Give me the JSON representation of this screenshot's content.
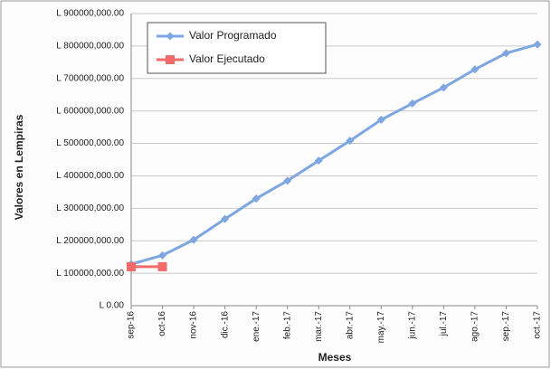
{
  "chart_data": {
    "type": "line",
    "x_label": "Meses",
    "y_label": "Valores en Lempiras",
    "categories": [
      "sep-16",
      "oct-16",
      "nov-16",
      "dic.-16",
      "ene.-17",
      "feb.-17",
      "mar.-17",
      "abr.-17",
      "may.-17",
      "jun.-17",
      "jul.-17",
      "ago.-17",
      "sep.-17",
      "oct.-17"
    ],
    "series": [
      {
        "name": "Valor Programado",
        "color": "#7ea6e0",
        "marker": "diamond",
        "values": [
          128000000,
          155000000,
          203000000,
          267000000,
          330000000,
          385000000,
          447000000,
          508000000,
          573000000,
          623000000,
          672000000,
          728000000,
          778000000,
          805000000
        ]
      },
      {
        "name": "Valor Ejecutado",
        "color": "#f26b6b",
        "marker": "square",
        "values": [
          120000000,
          120000000,
          null,
          null,
          null,
          null,
          null,
          null,
          null,
          null,
          null,
          null,
          null,
          null
        ]
      }
    ],
    "ylim": [
      0,
      900000000
    ],
    "yticks": [
      {
        "value": 0,
        "label": "L 0.00"
      },
      {
        "value": 100000000,
        "label": "L 100000,000.00"
      },
      {
        "value": 200000000,
        "label": "L 200000,000.00"
      },
      {
        "value": 300000000,
        "label": "L 300000,000.00"
      },
      {
        "value": 400000000,
        "label": "L 400000,000.00"
      },
      {
        "value": 500000000,
        "label": "L 500000,000.00"
      },
      {
        "value": 600000000,
        "label": "L 600000,000.00"
      },
      {
        "value": 700000000,
        "label": "L 700000,000.00"
      },
      {
        "value": 800000000,
        "label": "L 800000,000.00"
      },
      {
        "value": 900000000,
        "label": "L 900000,000.00"
      }
    ],
    "grid": true,
    "legend": "top-left"
  }
}
